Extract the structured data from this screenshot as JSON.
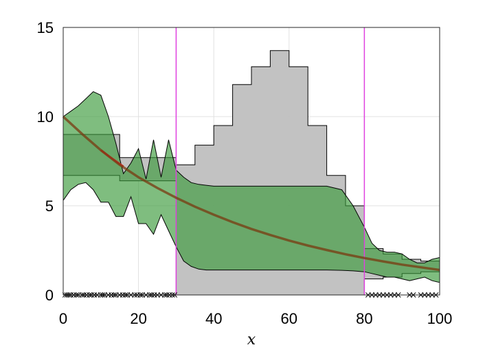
{
  "chart_data": {
    "type": "area",
    "title": "",
    "xlabel": "x",
    "ylabel": "",
    "xlim": [
      0,
      100
    ],
    "ylim": [
      0,
      15
    ],
    "xticks": [
      0,
      20,
      40,
      60,
      80,
      100
    ],
    "yticks": [
      0,
      5,
      10,
      15
    ],
    "grid": true,
    "legend": "none",
    "colors": {
      "gray_fill": "#bfbfbf",
      "green_fill": "#3a9a3a",
      "mean_line": "#7a3a10",
      "true_line": "#d03030",
      "vline": "#e040e0",
      "edge": "#000000"
    },
    "vertical_lines": [
      30,
      80
    ],
    "gray_band": {
      "x": [
        0,
        15,
        15,
        30,
        30,
        35,
        35,
        40,
        40,
        45,
        45,
        50,
        50,
        55,
        55,
        60,
        60,
        65,
        65,
        70,
        70,
        75,
        75,
        80,
        80,
        85,
        85,
        90,
        90,
        95,
        95,
        100
      ],
      "upper": [
        9.0,
        9.0,
        7.7,
        7.7,
        7.3,
        7.3,
        8.4,
        8.4,
        9.5,
        9.5,
        11.8,
        11.8,
        12.8,
        12.8,
        13.7,
        13.7,
        12.8,
        12.8,
        9.5,
        9.5,
        6.7,
        6.7,
        5.0,
        5.0,
        2.6,
        2.6,
        2.3,
        2.3,
        2.0,
        2.0,
        1.9,
        1.9
      ],
      "lower": [
        6.7,
        6.7,
        6.4,
        6.4,
        0.0,
        0.0,
        0.0,
        0.0,
        0.0,
        0.0,
        0.0,
        0.0,
        0.0,
        0.0,
        0.0,
        0.0,
        0.0,
        0.0,
        0.0,
        0.0,
        0.0,
        0.0,
        0.0,
        0.0,
        0.9,
        0.9,
        1.0,
        1.0,
        1.2,
        1.2,
        1.3,
        1.3
      ]
    },
    "green_band": {
      "x": [
        0,
        2,
        4,
        6,
        8,
        10,
        12,
        14,
        16,
        18,
        20,
        22,
        24,
        26,
        28,
        30,
        32,
        34,
        36,
        38,
        40,
        45,
        50,
        55,
        60,
        65,
        70,
        74,
        77,
        80,
        82,
        84,
        86,
        88,
        90,
        92,
        94,
        96,
        98,
        100
      ],
      "upper": [
        10.0,
        10.3,
        10.6,
        11.0,
        11.4,
        11.2,
        10.0,
        8.5,
        6.8,
        7.4,
        8.2,
        6.5,
        8.7,
        6.6,
        8.7,
        7.0,
        6.6,
        6.3,
        6.2,
        6.15,
        6.1,
        6.1,
        6.1,
        6.1,
        6.1,
        6.1,
        6.1,
        5.9,
        5.0,
        3.8,
        2.9,
        2.5,
        2.4,
        2.4,
        2.3,
        2.0,
        1.8,
        1.8,
        2.0,
        2.1
      ],
      "lower": [
        5.3,
        5.9,
        6.2,
        6.3,
        5.9,
        5.2,
        5.2,
        4.4,
        4.4,
        5.5,
        4.0,
        4.0,
        3.4,
        4.5,
        3.6,
        2.7,
        1.9,
        1.6,
        1.45,
        1.4,
        1.4,
        1.4,
        1.4,
        1.4,
        1.4,
        1.4,
        1.4,
        1.38,
        1.35,
        1.3,
        1.2,
        1.1,
        1.0,
        1.0,
        0.9,
        0.8,
        0.9,
        1.0,
        0.8,
        0.7
      ]
    },
    "mean_curve": {
      "x": [
        0,
        5,
        10,
        15,
        20,
        25,
        30,
        35,
        40,
        45,
        50,
        55,
        60,
        65,
        70,
        75,
        80,
        85,
        90,
        95,
        100
      ],
      "y": [
        10.0,
        9.03,
        8.12,
        7.3,
        6.6,
        6.0,
        5.45,
        4.95,
        4.5,
        4.08,
        3.7,
        3.36,
        3.05,
        2.77,
        2.52,
        2.28,
        2.07,
        1.88,
        1.7,
        1.55,
        1.4
      ]
    },
    "true_segment": {
      "x": [
        10,
        12,
        14,
        16
      ],
      "y": [
        8.12,
        7.8,
        7.5,
        7.2
      ]
    },
    "samples": {
      "x": [
        0.5,
        1,
        1.5,
        2,
        2.8,
        3.5,
        4,
        5,
        5.5,
        6.2,
        7,
        7.5,
        8.3,
        9,
        10,
        10.5,
        11,
        12,
        12.8,
        13.5,
        14,
        15,
        15.8,
        16.5,
        17,
        18,
        19,
        19.6,
        20.5,
        21,
        22,
        23,
        23.5,
        24.2,
        25,
        26,
        27,
        27.5,
        28.2,
        29,
        29.6,
        81,
        82,
        83,
        84,
        85,
        86,
        87,
        88,
        89,
        92,
        93,
        95,
        96,
        97,
        98,
        99
      ]
    }
  }
}
